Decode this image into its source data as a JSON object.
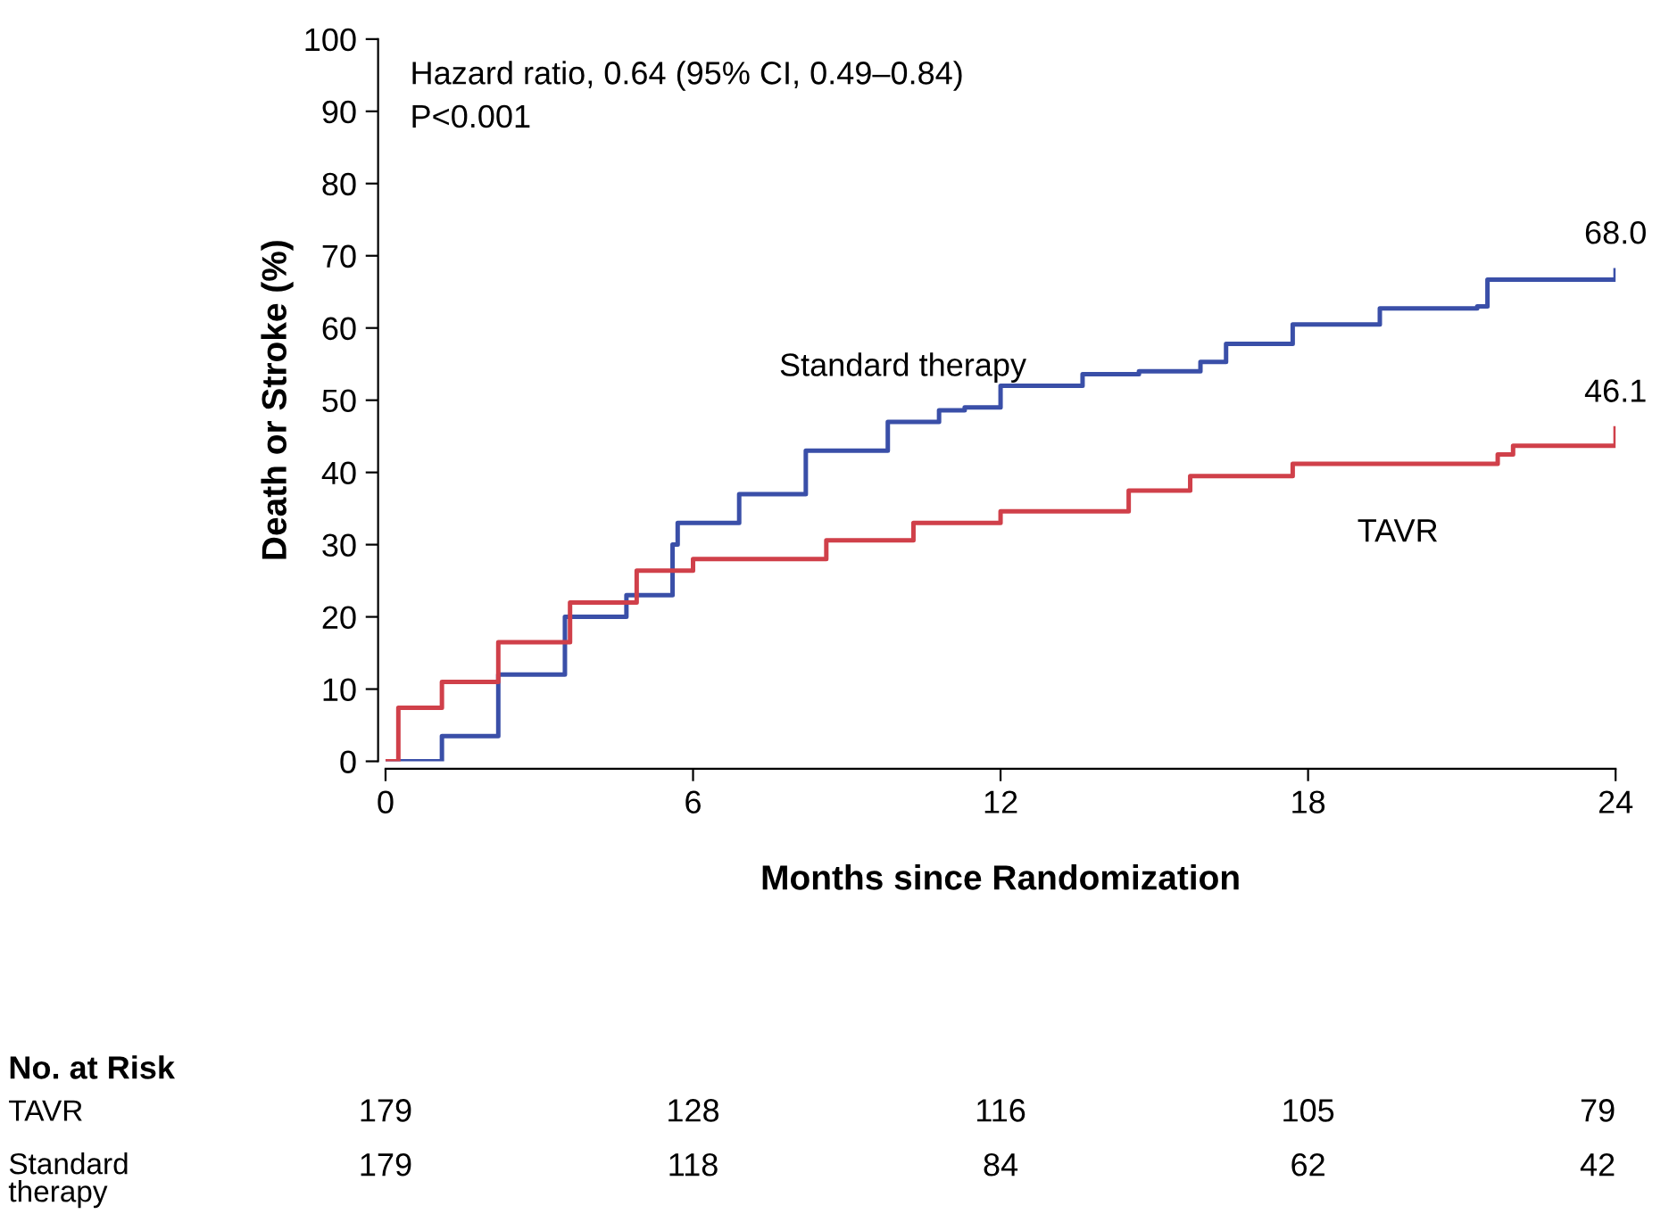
{
  "chart_data": {
    "type": "step",
    "xlabel": "Months since Randomization",
    "ylabel": "Death or Stroke (%)",
    "xlim": [
      0,
      24
    ],
    "ylim": [
      0,
      100
    ],
    "xticks": [
      0,
      6,
      12,
      18,
      24
    ],
    "yticks": [
      0,
      10,
      20,
      30,
      40,
      50,
      60,
      70,
      80,
      90,
      100
    ],
    "grid": false,
    "legend": false,
    "series": [
      {
        "name": "Standard therapy",
        "color": "#3a4fa8",
        "x": [
          0,
          1.1,
          2.2,
          3.5,
          4.7,
          5.6,
          5.7,
          6.9,
          8.2,
          9.0,
          9.8,
          10.8,
          11.3,
          12.0,
          13.6,
          14.7,
          15.9,
          16.4,
          17.7,
          19.4,
          21.3,
          21.5,
          24
        ],
        "values": [
          0,
          3.5,
          12,
          20,
          23,
          30,
          33,
          37,
          43,
          43,
          47,
          48.6,
          49,
          52,
          53.6,
          54,
          55.3,
          57.8,
          60.5,
          62.7,
          63,
          66.7,
          68.0
        ]
      },
      {
        "name": "TAVR",
        "color": "#d0404a",
        "x": [
          0,
          0.25,
          1.1,
          2.2,
          3.6,
          4.9,
          6.0,
          7.6,
          8.6,
          10.3,
          12.0,
          14.5,
          15.7,
          17.7,
          21.7,
          22.0,
          23.6,
          24
        ],
        "values": [
          0,
          7.4,
          11,
          16.5,
          22,
          26.4,
          28,
          28,
          30.6,
          33,
          34.6,
          37.5,
          39.5,
          41.2,
          42.5,
          43.7,
          43.7,
          46.1
        ]
      }
    ],
    "annotations": [
      "Hazard ratio, 0.64 (95% CI, 0.49–0.84)",
      "P<0.001",
      {
        "text": "68.0",
        "x": 24,
        "y": 68.0
      },
      {
        "text": "46.1",
        "x": 24,
        "y": 46.1
      },
      "No. at Risk",
      "TAVR",
      "179",
      "128",
      "116",
      "105",
      "79",
      "Standard\ntherapy",
      "179",
      "118",
      "84",
      "62",
      "42"
    ]
  }
}
